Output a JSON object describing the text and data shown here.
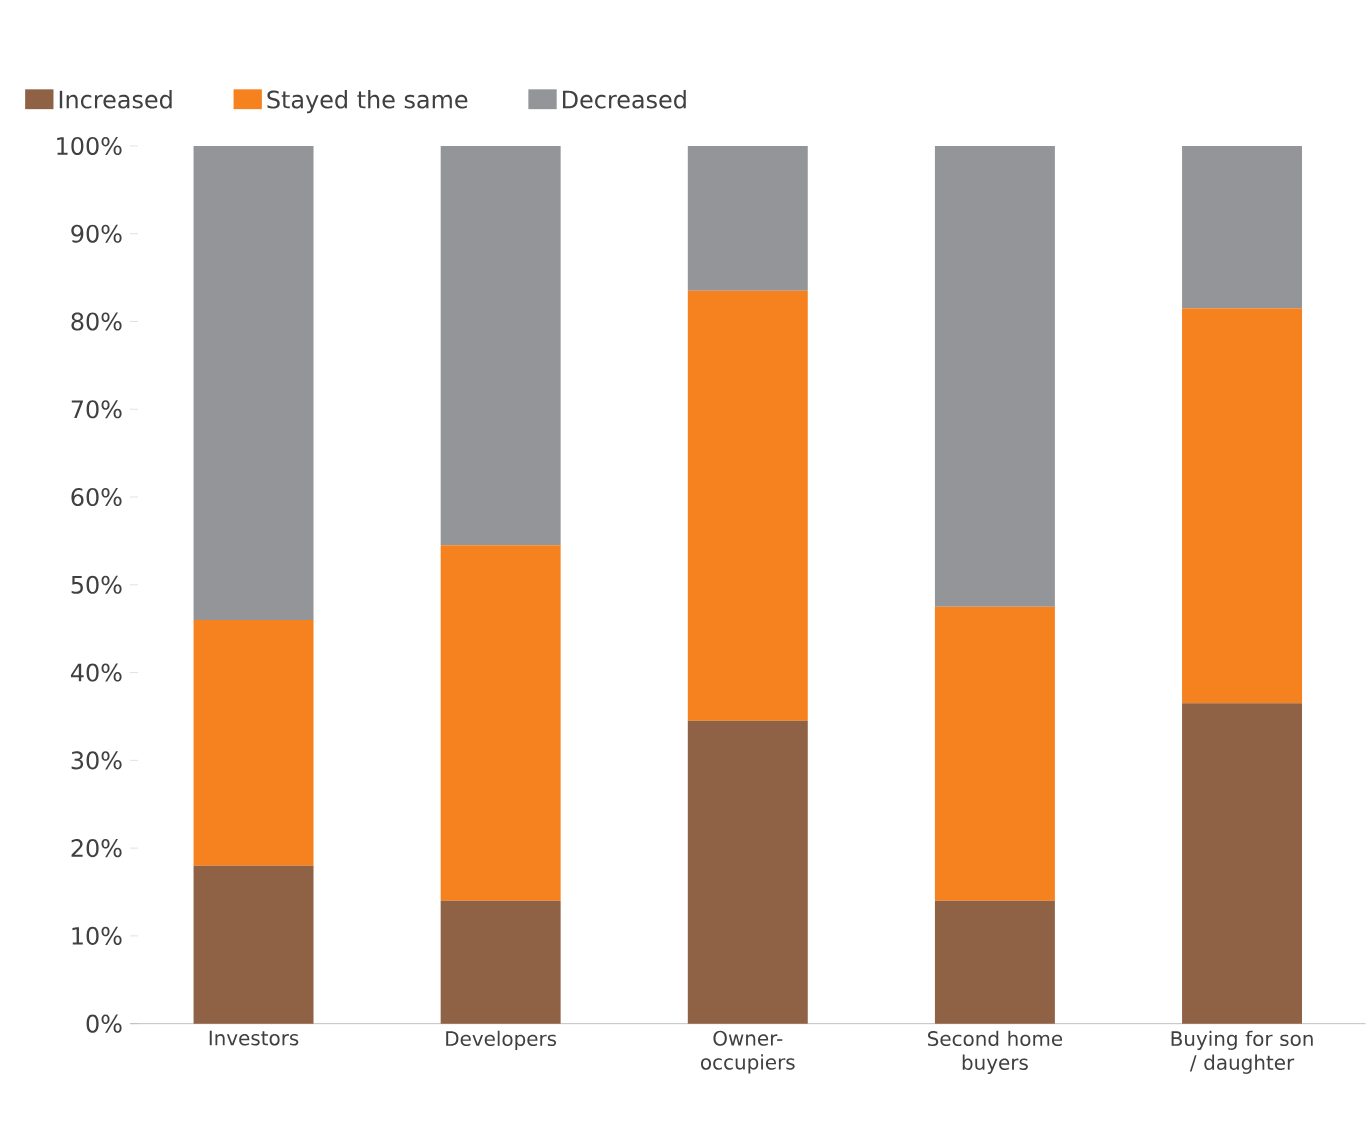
{
  "chart_data": {
    "type": "bar",
    "stacked": true,
    "categories": [
      "Investors",
      "Developers",
      "Owner-occupiers",
      "Second home buyers",
      "Buying for son / daughter"
    ],
    "series": [
      {
        "name": "Increased",
        "color": "#8f6245",
        "values": [
          18,
          14,
          34.5,
          14,
          36.5
        ]
      },
      {
        "name": "Stayed the same",
        "color": "#f5821f",
        "values": [
          28,
          40.5,
          49,
          33.5,
          45
        ]
      },
      {
        "name": "Decreased",
        "color": "#939598",
        "values": [
          54,
          45.5,
          16.5,
          52.5,
          18.5
        ]
      }
    ],
    "ylim": [
      0,
      100
    ],
    "yticks": [
      {
        "value": 0,
        "label": "0%"
      },
      {
        "value": 10,
        "label": "10%"
      },
      {
        "value": 20,
        "label": "20%"
      },
      {
        "value": 30,
        "label": "30%"
      },
      {
        "value": 40,
        "label": "40%"
      },
      {
        "value": 50,
        "label": "50%"
      },
      {
        "value": 60,
        "label": "60%"
      },
      {
        "value": 70,
        "label": "70%"
      },
      {
        "value": 80,
        "label": "80%"
      },
      {
        "value": 90,
        "label": "90%"
      },
      {
        "value": 100,
        "label": "100%"
      }
    ],
    "legend": "top left",
    "grid": false
  }
}
